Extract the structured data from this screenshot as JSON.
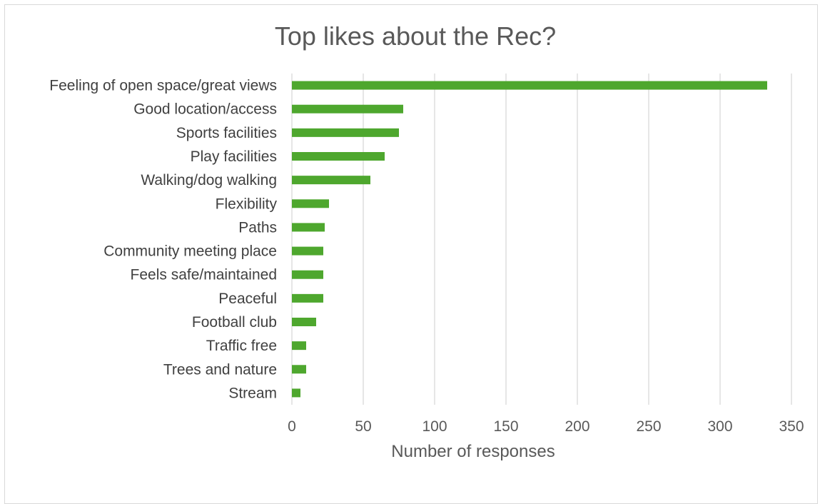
{
  "chart_data": {
    "type": "bar",
    "orientation": "horizontal",
    "title": "Top likes about the Rec?",
    "xlabel": "Number of responses",
    "ylabel": "",
    "xlim": [
      0,
      350
    ],
    "x_ticks": [
      0,
      50,
      100,
      150,
      200,
      250,
      300,
      350
    ],
    "grid": "vertical",
    "legend": "none",
    "bar_color": "#4ea72e",
    "categories": [
      "Feeling of open space/great views",
      "Good location/access",
      "Sports facilities",
      "Play facilities",
      "Walking/dog walking",
      "Flexibility",
      "Paths",
      "Community meeting place",
      "Feels safe/maintained",
      "Peaceful",
      "Football club",
      "Traffic free",
      "Trees and nature",
      "Stream"
    ],
    "values": [
      333,
      78,
      75,
      65,
      55,
      26,
      23,
      22,
      22,
      22,
      17,
      10,
      10,
      6
    ]
  }
}
